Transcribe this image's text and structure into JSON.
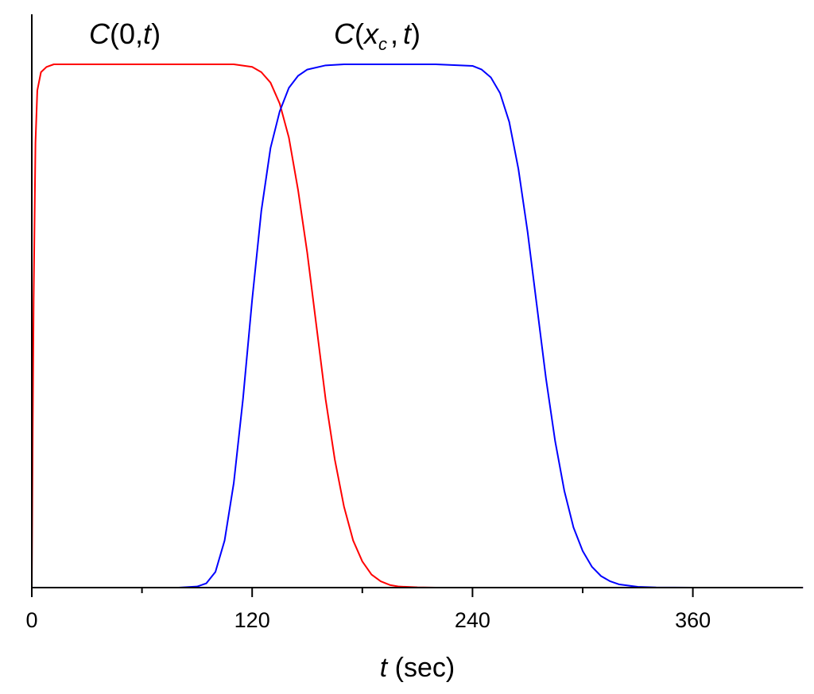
{
  "chart_data": {
    "type": "line",
    "title": "",
    "xlabel": {
      "var": "t",
      "unit": " (sec)"
    },
    "ylabel": "",
    "xlim": [
      0,
      420
    ],
    "ylim": [
      0,
      1
    ],
    "x_ticks": [
      0,
      120,
      240,
      360
    ],
    "x_minor_ticks": [
      60,
      180,
      300
    ],
    "grid": false,
    "legend": "none",
    "series": [
      {
        "name": "C(0,t)",
        "label_parts": {
          "f": "C",
          "arg1": "0",
          "sub": "",
          "arg2": "t"
        },
        "color": "#ff0000",
        "x": [
          0,
          0.5,
          1,
          2,
          3,
          5,
          8,
          12,
          20,
          40,
          80,
          110,
          120,
          125,
          130,
          135,
          140,
          145,
          150,
          155,
          160,
          165,
          170,
          175,
          180,
          185,
          190,
          195,
          200,
          210,
          220,
          240,
          300,
          360,
          420
        ],
        "y": [
          0,
          0.3,
          0.55,
          0.85,
          0.95,
          0.985,
          0.995,
          1.0,
          1.0,
          1.0,
          1.0,
          1.0,
          0.995,
          0.985,
          0.965,
          0.925,
          0.86,
          0.76,
          0.64,
          0.5,
          0.36,
          0.245,
          0.155,
          0.09,
          0.05,
          0.025,
          0.012,
          0.005,
          0.002,
          0.0005,
          0,
          0,
          0,
          0,
          0
        ]
      },
      {
        "name": "C(x_c,t)",
        "label_parts": {
          "f": "C",
          "arg1": "x",
          "sub": "c",
          "arg2": "t"
        },
        "color": "#0000ff",
        "x": [
          0,
          80,
          90,
          95,
          100,
          105,
          110,
          115,
          120,
          125,
          130,
          135,
          140,
          145,
          150,
          160,
          170,
          190,
          220,
          240,
          245,
          250,
          255,
          260,
          265,
          270,
          275,
          280,
          285,
          290,
          295,
          300,
          305,
          310,
          315,
          320,
          330,
          340,
          360,
          420
        ],
        "y": [
          0,
          0,
          0.002,
          0.008,
          0.03,
          0.09,
          0.2,
          0.36,
          0.55,
          0.72,
          0.84,
          0.91,
          0.955,
          0.978,
          0.99,
          0.998,
          1.0,
          1.0,
          1.0,
          0.997,
          0.99,
          0.975,
          0.945,
          0.89,
          0.8,
          0.68,
          0.54,
          0.4,
          0.28,
          0.185,
          0.115,
          0.07,
          0.04,
          0.022,
          0.012,
          0.006,
          0.0015,
          0.0003,
          0,
          0
        ]
      }
    ]
  }
}
